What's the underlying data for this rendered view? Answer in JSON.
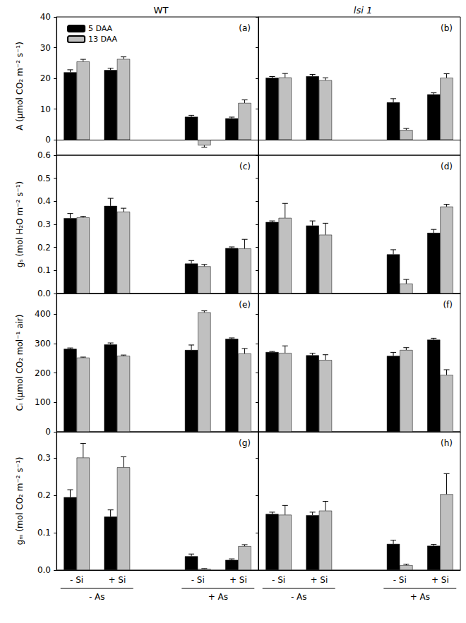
{
  "column_titles": [
    "WT",
    "lsi 1"
  ],
  "chart_data": [
    {
      "type": "bar",
      "title": "(a)",
      "y_label": "A (μmol CO₂ m⁻² s⁻¹)",
      "legend": "upper left",
      "tick_labels": "y",
      "grid": false,
      "categories": [
        "- Si",
        "+ Si",
        null,
        "- Si",
        "+ Si"
      ],
      "ylim": [
        -5,
        40
      ],
      "yticks": [
        0,
        10,
        20,
        30,
        40
      ],
      "series": [
        {
          "name": "5 DAA",
          "color": "#000000",
          "values": [
            22,
            22.7,
            null,
            7.5,
            7
          ],
          "errors": [
            0.8,
            0.6,
            null,
            0.5,
            0.4
          ]
        },
        {
          "name": "13 DAA",
          "color": "#c0c0c0",
          "values": [
            25.5,
            26.3,
            null,
            -1.8,
            12
          ],
          "errors": [
            0.7,
            0.7,
            null,
            0.6,
            1.0
          ]
        }
      ]
    },
    {
      "type": "bar",
      "title": "(b)",
      "tick_labels": false,
      "grid": false,
      "categories": [
        "- Si",
        "+ Si",
        null,
        "- Si",
        "+ Si"
      ],
      "ylim": [
        -5,
        40
      ],
      "yticks": [
        0,
        10,
        20,
        30,
        40
      ],
      "series": [
        {
          "name": "5 DAA",
          "color": "#000000",
          "values": [
            20.2,
            20.7,
            null,
            12.2,
            14.8
          ],
          "errors": [
            0.4,
            0.6,
            null,
            1.2,
            0.5
          ]
        },
        {
          "name": "13 DAA",
          "color": "#c0c0c0",
          "values": [
            20.3,
            19.4,
            null,
            3.2,
            20.2
          ],
          "errors": [
            1.3,
            0.8,
            null,
            0.5,
            1.3
          ]
        }
      ]
    },
    {
      "type": "bar",
      "title": "(c)",
      "y_label": "gₛ (mol H₂O m⁻² s⁻¹)",
      "tick_labels": "y",
      "grid": false,
      "categories": [
        "- Si",
        "+ Si",
        null,
        "- Si",
        "+ Si"
      ],
      "ylim": [
        0,
        0.6
      ],
      "yticks": [
        {
          "value": 0,
          "label": "0.0"
        },
        0.1,
        0.2,
        0.3,
        0.4,
        0.5,
        0.6
      ],
      "series": [
        {
          "name": "5 DAA",
          "color": "#000000",
          "values": [
            0.327,
            0.38,
            null,
            0.13,
            0.197
          ],
          "errors": [
            0.02,
            0.033,
            null,
            0.013,
            0.005
          ]
        },
        {
          "name": "13 DAA",
          "color": "#c0c0c0",
          "values": [
            0.33,
            0.355,
            null,
            0.118,
            0.195
          ],
          "errors": [
            0.005,
            0.015,
            null,
            0.008,
            0.04
          ]
        }
      ]
    },
    {
      "type": "bar",
      "title": "(d)",
      "tick_labels": false,
      "grid": false,
      "categories": [
        "- Si",
        "+ Si",
        null,
        "- Si",
        "+ Si"
      ],
      "ylim": [
        0,
        0.6
      ],
      "yticks": [
        {
          "value": 0,
          "label": "0.0"
        },
        0.1,
        0.2,
        0.3,
        0.4,
        0.5,
        0.6
      ],
      "series": [
        {
          "name": "5 DAA",
          "color": "#000000",
          "values": [
            0.31,
            0.295,
            null,
            0.17,
            0.263
          ],
          "errors": [
            0.005,
            0.02,
            null,
            0.02,
            0.015
          ]
        },
        {
          "name": "13 DAA",
          "color": "#c0c0c0",
          "values": [
            0.328,
            0.255,
            null,
            0.043,
            0.377
          ],
          "errors": [
            0.063,
            0.05,
            null,
            0.018,
            0.01
          ]
        }
      ]
    },
    {
      "type": "bar",
      "title": "(e)",
      "y_label": "Cᵢ (μmol CO₂ mol⁻¹ air)",
      "tick_labels": "y",
      "grid": false,
      "categories": [
        "- Si",
        "+ Si",
        null,
        "- Si",
        "+ Si"
      ],
      "ylim": [
        0,
        470
      ],
      "yticks": [
        0,
        100,
        200,
        300,
        400
      ],
      "series": [
        {
          "name": "5 DAA",
          "color": "#000000",
          "values": [
            282,
            297,
            null,
            278,
            316
          ],
          "errors": [
            3,
            5,
            null,
            17,
            3
          ]
        },
        {
          "name": "13 DAA",
          "color": "#c0c0c0",
          "values": [
            252,
            258,
            null,
            406,
            266
          ],
          "errors": [
            2,
            3,
            null,
            5,
            17
          ]
        }
      ]
    },
    {
      "type": "bar",
      "title": "(f)",
      "tick_labels": false,
      "grid": false,
      "categories": [
        "- Si",
        "+ Si",
        null,
        "- Si",
        "+ Si"
      ],
      "ylim": [
        0,
        470
      ],
      "yticks": [
        0,
        100,
        200,
        300,
        400
      ],
      "series": [
        {
          "name": "5 DAA",
          "color": "#000000",
          "values": [
            271,
            260,
            null,
            258,
            313
          ],
          "errors": [
            2,
            7,
            null,
            12,
            5
          ]
        },
        {
          "name": "13 DAA",
          "color": "#c0c0c0",
          "values": [
            268,
            244,
            null,
            278,
            193
          ],
          "errors": [
            24,
            18,
            null,
            8,
            18
          ]
        }
      ]
    },
    {
      "type": "bar",
      "title": "(g)",
      "y_label": "gₘ (mol CO₂ m⁻² s⁻¹)",
      "tick_labels": true,
      "grid": false,
      "categories": [
        "- Si",
        "+ Si",
        null,
        "- Si",
        "+ Si"
      ],
      "category_groups": [
        "- As",
        "- As",
        null,
        "+ As",
        "+ As"
      ],
      "ylim": [
        0,
        0.37
      ],
      "yticks": [
        {
          "value": 0,
          "label": "0.0"
        },
        0.1,
        0.2,
        0.3
      ],
      "series": [
        {
          "name": "5 DAA",
          "color": "#000000",
          "values": [
            0.195,
            0.143,
            null,
            0.037,
            0.027
          ],
          "errors": [
            0.02,
            0.018,
            null,
            0.006,
            0.003
          ]
        },
        {
          "name": "13 DAA",
          "color": "#c0c0c0",
          "values": [
            0.301,
            0.275,
            null,
            0.003,
            0.064
          ],
          "errors": [
            0.038,
            0.028,
            null,
            0.001,
            0.004
          ]
        }
      ]
    },
    {
      "type": "bar",
      "title": "(h)",
      "tick_labels": "x",
      "grid": false,
      "categories": [
        "- Si",
        "+ Si",
        null,
        "- Si",
        "+ Si"
      ],
      "category_groups": [
        "- As",
        "- As",
        null,
        "+ As",
        "+ As"
      ],
      "ylim": [
        0,
        0.37
      ],
      "yticks": [
        {
          "value": 0,
          "label": "0.0"
        },
        0.1,
        0.2,
        0.3
      ],
      "series": [
        {
          "name": "5 DAA",
          "color": "#000000",
          "values": [
            0.15,
            0.147,
            null,
            0.07,
            0.065
          ],
          "errors": [
            0.005,
            0.008,
            null,
            0.01,
            0.004
          ]
        },
        {
          "name": "13 DAA",
          "color": "#c0c0c0",
          "values": [
            0.148,
            0.159,
            null,
            0.013,
            0.203
          ],
          "errors": [
            0.025,
            0.025,
            null,
            0.003,
            0.055
          ]
        }
      ]
    }
  ]
}
